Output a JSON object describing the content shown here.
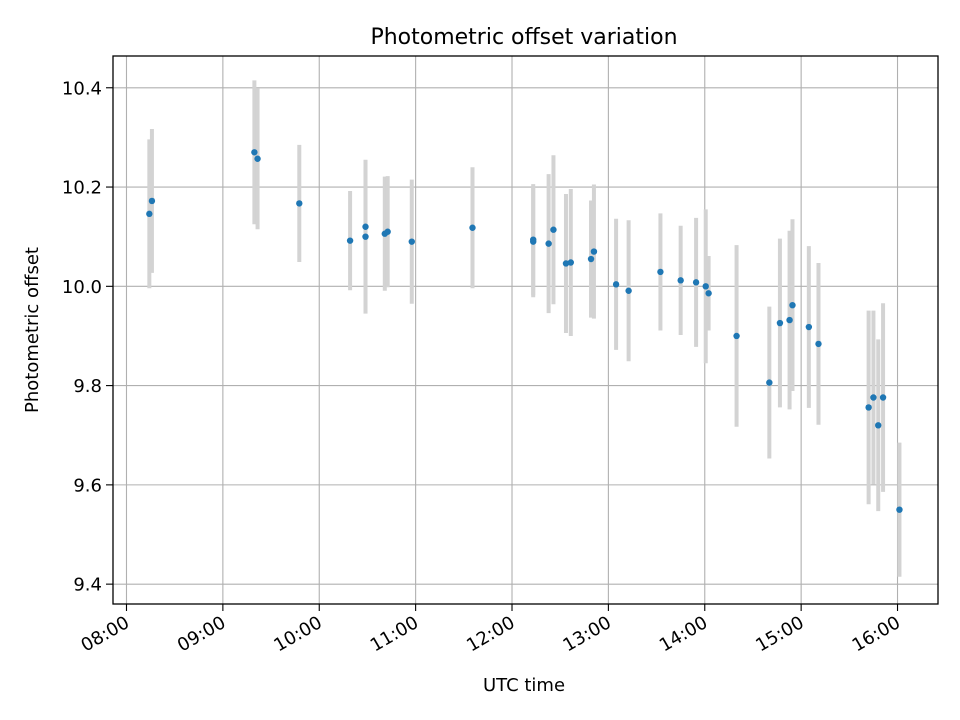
{
  "chart_data": {
    "type": "scatter",
    "title": "Photometric offset variation",
    "xlabel": "UTC time",
    "ylabel": "Photometric offset",
    "xlim_hours": [
      7.86,
      16.42
    ],
    "ylim": [
      9.36,
      10.464
    ],
    "grid": true,
    "x_ticks": [
      {
        "hour": 8,
        "label": "08:00"
      },
      {
        "hour": 9,
        "label": "09:00"
      },
      {
        "hour": 10,
        "label": "10:00"
      },
      {
        "hour": 11,
        "label": "11:00"
      },
      {
        "hour": 12,
        "label": "12:00"
      },
      {
        "hour": 13,
        "label": "13:00"
      },
      {
        "hour": 14,
        "label": "14:00"
      },
      {
        "hour": 15,
        "label": "15:00"
      },
      {
        "hour": 16,
        "label": "16:00"
      }
    ],
    "y_ticks": [
      {
        "value": 9.4,
        "label": "9.4"
      },
      {
        "value": 9.6,
        "label": "9.6"
      },
      {
        "value": 9.8,
        "label": "9.8"
      },
      {
        "value": 10.0,
        "label": "10.0"
      },
      {
        "value": 10.2,
        "label": "10.2"
      },
      {
        "value": 10.4,
        "label": "10.4"
      }
    ],
    "point_color": "#1f77b4",
    "errorbar_color": "#d3d3d3",
    "points": [
      {
        "x": 8.237,
        "y": 10.146,
        "err": 0.15
      },
      {
        "x": 8.264,
        "y": 10.172,
        "err": 0.145
      },
      {
        "x": 9.327,
        "y": 10.27,
        "err": 0.145
      },
      {
        "x": 9.36,
        "y": 10.257,
        "err": 0.142
      },
      {
        "x": 9.793,
        "y": 10.167,
        "err": 0.118
      },
      {
        "x": 10.32,
        "y": 10.092,
        "err": 0.1
      },
      {
        "x": 10.48,
        "y": 10.1,
        "err": 0.155
      },
      {
        "x": 10.48,
        "y": 10.12,
        "err": 0.12
      },
      {
        "x": 10.68,
        "y": 10.106,
        "err": 0.115
      },
      {
        "x": 10.71,
        "y": 10.11,
        "err": 0.112
      },
      {
        "x": 10.96,
        "y": 10.09,
        "err": 0.125
      },
      {
        "x": 11.59,
        "y": 10.118,
        "err": 0.122
      },
      {
        "x": 12.22,
        "y": 10.09,
        "err": 0.112
      },
      {
        "x": 12.22,
        "y": 10.094,
        "err": 0.112
      },
      {
        "x": 12.38,
        "y": 10.086,
        "err": 0.14
      },
      {
        "x": 12.43,
        "y": 10.114,
        "err": 0.15
      },
      {
        "x": 12.56,
        "y": 10.046,
        "err": 0.14
      },
      {
        "x": 12.61,
        "y": 10.048,
        "err": 0.148
      },
      {
        "x": 12.82,
        "y": 10.055,
        "err": 0.118
      },
      {
        "x": 12.85,
        "y": 10.07,
        "err": 0.135
      },
      {
        "x": 13.08,
        "y": 10.004,
        "err": 0.132
      },
      {
        "x": 13.21,
        "y": 9.991,
        "err": 0.142
      },
      {
        "x": 13.54,
        "y": 10.029,
        "err": 0.118
      },
      {
        "x": 13.75,
        "y": 10.012,
        "err": 0.11
      },
      {
        "x": 13.91,
        "y": 10.008,
        "err": 0.13
      },
      {
        "x": 14.01,
        "y": 10.0,
        "err": 0.155
      },
      {
        "x": 14.04,
        "y": 9.986,
        "err": 0.075
      },
      {
        "x": 14.33,
        "y": 9.9,
        "err": 0.183
      },
      {
        "x": 14.67,
        "y": 9.806,
        "err": 0.153
      },
      {
        "x": 14.78,
        "y": 9.926,
        "err": 0.17
      },
      {
        "x": 14.88,
        "y": 9.932,
        "err": 0.18
      },
      {
        "x": 14.91,
        "y": 9.962,
        "err": 0.173
      },
      {
        "x": 15.08,
        "y": 9.918,
        "err": 0.163
      },
      {
        "x": 15.18,
        "y": 9.884,
        "err": 0.163
      },
      {
        "x": 15.7,
        "y": 9.756,
        "err": 0.195
      },
      {
        "x": 15.75,
        "y": 9.776,
        "err": 0.175
      },
      {
        "x": 15.8,
        "y": 9.72,
        "err": 0.173
      },
      {
        "x": 15.85,
        "y": 9.776,
        "err": 0.19
      },
      {
        "x": 16.02,
        "y": 9.55,
        "err": 0.135
      }
    ]
  }
}
